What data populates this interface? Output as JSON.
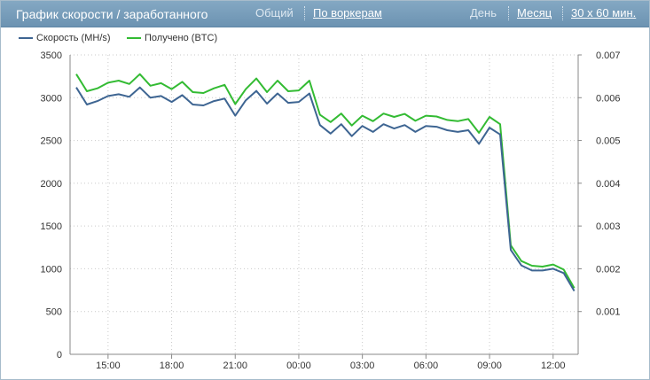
{
  "header": {
    "title": "График скорости / заработанного",
    "buttons": [
      {
        "label": "Общий",
        "active": false
      },
      {
        "label": "По воркерам",
        "active": true
      },
      {
        "label": "День",
        "active": false
      },
      {
        "label": "Месяц",
        "active": true
      },
      {
        "label": "30 x 60 мин.",
        "active": true
      }
    ]
  },
  "chart_data": {
    "type": "line",
    "legend_position": "top-left",
    "grid": true,
    "x_tick_labels": [
      "15:00",
      "18:00",
      "21:00",
      "00:00",
      "03:00",
      "06:00",
      "09:00",
      "12:00"
    ],
    "y_left": {
      "range": [
        0,
        3500
      ],
      "ticks": [
        "0",
        "500",
        "1000",
        "1500",
        "2000",
        "2500",
        "3000",
        "3500"
      ]
    },
    "y_right": {
      "range": [
        0,
        0.007
      ],
      "ticks": [
        "0.001",
        "0.002",
        "0.003",
        "0.004",
        "0.005",
        "0.006",
        "0.007"
      ]
    },
    "series": [
      {
        "name": "Скорость (MH/s)",
        "color": "#3e6592",
        "axis": "left",
        "values": [
          3120,
          2920,
          2960,
          3020,
          3040,
          3010,
          3120,
          3000,
          3020,
          2950,
          3030,
          2920,
          2910,
          2960,
          2990,
          2790,
          2970,
          3080,
          2930,
          3050,
          2940,
          2950,
          3050,
          2680,
          2580,
          2690,
          2550,
          2670,
          2600,
          2690,
          2640,
          2680,
          2600,
          2670,
          2660,
          2620,
          2600,
          2620,
          2460,
          2650,
          2570,
          1220,
          1040,
          980,
          980,
          1000,
          950,
          740
        ]
      },
      {
        "name": "Получено (BTC)",
        "color": "#33bb33",
        "axis": "right",
        "values": [
          0.00655,
          0.00615,
          0.00622,
          0.00635,
          0.0064,
          0.00632,
          0.00655,
          0.00628,
          0.00634,
          0.0062,
          0.00637,
          0.00613,
          0.00611,
          0.00622,
          0.0063,
          0.00585,
          0.0062,
          0.00645,
          0.00613,
          0.0064,
          0.00615,
          0.00617,
          0.0064,
          0.0056,
          0.00543,
          0.00563,
          0.00535,
          0.00558,
          0.00545,
          0.00563,
          0.00555,
          0.00562,
          0.00546,
          0.00558,
          0.00556,
          0.00548,
          0.00545,
          0.0055,
          0.00518,
          0.00555,
          0.00538,
          0.00255,
          0.00218,
          0.00207,
          0.00205,
          0.0021,
          0.00198,
          0.00155
        ]
      }
    ]
  }
}
